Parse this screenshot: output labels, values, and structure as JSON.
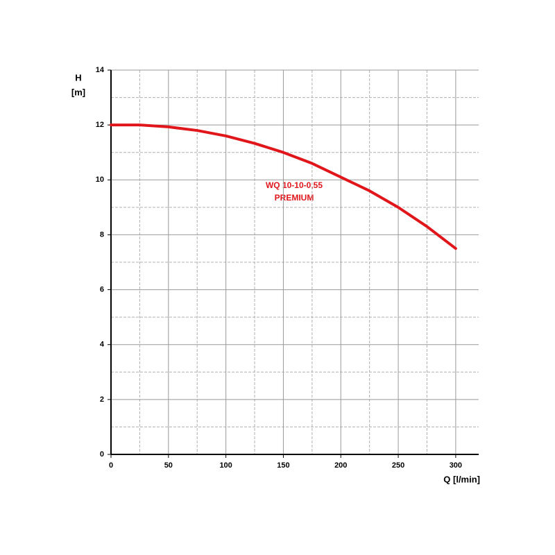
{
  "chart_data": {
    "type": "line",
    "ylabel": [
      "H",
      "[m]"
    ],
    "xlabel": "Q [l/min]",
    "annotation": [
      "WQ 10-10-0,55",
      "PREMIUM"
    ],
    "x": [
      0,
      25,
      50,
      75,
      100,
      125,
      150,
      175,
      200,
      225,
      250,
      275,
      300
    ],
    "series": [
      {
        "name": "WQ 10-10-0,55 PREMIUM",
        "color": "#e0161b",
        "values": [
          12.0,
          12.0,
          11.93,
          11.8,
          11.6,
          11.33,
          11.0,
          10.6,
          10.1,
          9.6,
          9.0,
          8.3,
          7.5
        ]
      }
    ],
    "xlim": [
      0,
      320
    ],
    "ylim": [
      0,
      14
    ],
    "xticks": [
      0,
      50,
      100,
      150,
      200,
      250,
      300
    ],
    "yticks": [
      0,
      2,
      4,
      6,
      8,
      10,
      12,
      14
    ],
    "xminor": [
      25,
      75,
      125,
      175,
      225,
      275
    ],
    "yminor": [
      1,
      3,
      5,
      7,
      9,
      11,
      13
    ],
    "grid": true
  }
}
